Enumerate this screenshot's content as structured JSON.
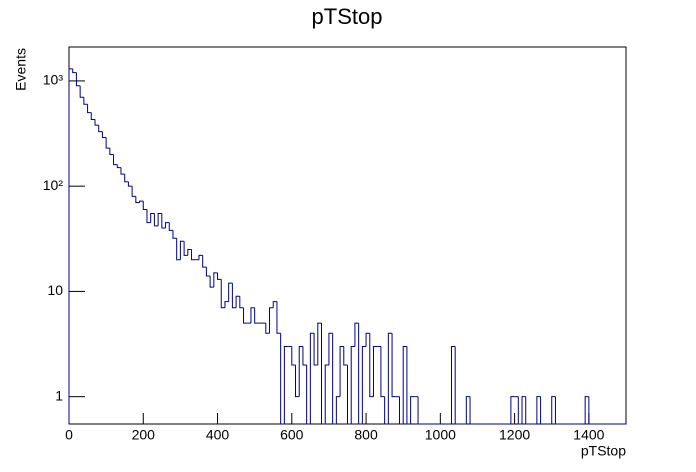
{
  "chart_data": {
    "type": "histogram",
    "title": "pTStop",
    "x_label": "pTStop",
    "y_label": "Events",
    "log_y": true,
    "color": "#000088",
    "bins": [
      0,
      10,
      20,
      30,
      40,
      50,
      60,
      70,
      80,
      90,
      100,
      110,
      120,
      130,
      140,
      150,
      160,
      170,
      180,
      190,
      200,
      210,
      220,
      230,
      240,
      250,
      260,
      270,
      280,
      290,
      300,
      310,
      320,
      330,
      340,
      350,
      360,
      370,
      380,
      390,
      400,
      410,
      420,
      430,
      440,
      450,
      460,
      470,
      480,
      490,
      500,
      510,
      520,
      530,
      540,
      550,
      560,
      570,
      580,
      590,
      600,
      610,
      620,
      630,
      640,
      650,
      660,
      670,
      680,
      690,
      700,
      710,
      720,
      730,
      740,
      750,
      760,
      770,
      780,
      790,
      800,
      810,
      820,
      830,
      840,
      850,
      860,
      870,
      880,
      890,
      900,
      910,
      920,
      930,
      940,
      950,
      960,
      970,
      980,
      990,
      1000,
      1010,
      1020,
      1030,
      1040,
      1050,
      1060,
      1070,
      1080,
      1090,
      1100,
      1110,
      1120,
      1130,
      1140,
      1150,
      1160,
      1170,
      1180,
      1190,
      1200,
      1210,
      1220,
      1230,
      1240,
      1250,
      1260,
      1270,
      1280,
      1290,
      1300,
      1310,
      1320,
      1330,
      1340,
      1350,
      1360,
      1370,
      1380,
      1390,
      1400,
      1410,
      1420,
      1430,
      1440,
      1450,
      1460,
      1470,
      1480,
      1490,
      1500
    ],
    "values": [
      1300,
      1200,
      900,
      700,
      600,
      500,
      430,
      380,
      330,
      290,
      230,
      200,
      160,
      150,
      130,
      110,
      100,
      80,
      70,
      72,
      60,
      45,
      55,
      42,
      55,
      40,
      45,
      38,
      32,
      20,
      30,
      22,
      25,
      20,
      20,
      22,
      17,
      14,
      11,
      15,
      13,
      7,
      8,
      12,
      7,
      9,
      7,
      5,
      5,
      7,
      5,
      5,
      5,
      4,
      7,
      8,
      4,
      0,
      3,
      3,
      2,
      1,
      3,
      2,
      0,
      4,
      2,
      5,
      0,
      2,
      4,
      0,
      1,
      3,
      2,
      0,
      3,
      5,
      0,
      3,
      4,
      1,
      3,
      3,
      1,
      0,
      4,
      1,
      1,
      0,
      3,
      0,
      1,
      1,
      0,
      0,
      0,
      0,
      0,
      0,
      0,
      0,
      0,
      3,
      0,
      0,
      0,
      1,
      0,
      0,
      0,
      0,
      0,
      0,
      0,
      0,
      0,
      0,
      0,
      1,
      1,
      0,
      1,
      0,
      0,
      0,
      1,
      0,
      0,
      0,
      1,
      0,
      0,
      0,
      0,
      0,
      0,
      0,
      0,
      1,
      0,
      0,
      0,
      0,
      0,
      0,
      0,
      0,
      0,
      0
    ],
    "xlim": [
      0,
      1500
    ],
    "ylim": [
      0.55,
      2100
    ],
    "xticks": [
      0,
      200,
      400,
      600,
      800,
      1000,
      1200,
      1400
    ],
    "yticks": [
      1,
      10,
      {
        "value": 100,
        "label": "10²"
      },
      {
        "value": 1000,
        "label": "10³"
      }
    ]
  }
}
